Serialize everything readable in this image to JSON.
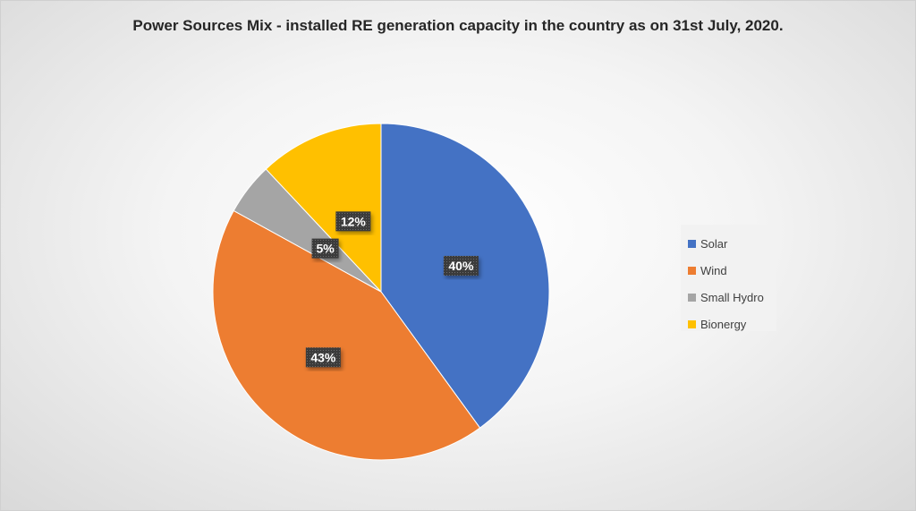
{
  "chart_data": {
    "type": "pie",
    "title": "Power Sources Mix - installed RE generation capacity in the country as on 31st July, 2020.",
    "categories": [
      "Solar",
      "Wind",
      "Small Hydro",
      "Bionergy"
    ],
    "values": [
      40,
      43,
      5,
      12
    ],
    "labels": [
      "40%",
      "43%",
      "5%",
      "12%"
    ],
    "colors": [
      "#4472C4",
      "#ED7D31",
      "#A5A5A5",
      "#FFC000"
    ],
    "legend_position": "right",
    "start_angle": "12 o'clock",
    "direction": "clockwise"
  }
}
